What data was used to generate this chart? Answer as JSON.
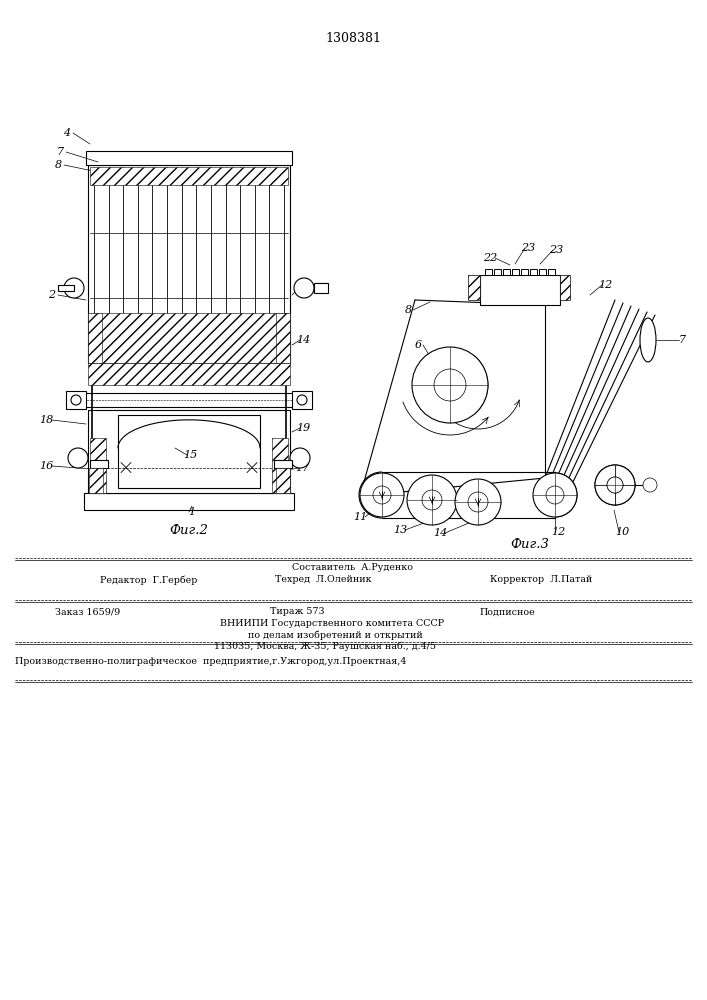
{
  "patent_number": "1308381",
  "bg_color": "#ffffff",
  "line_color": "#000000",
  "fig_width": 7.07,
  "fig_height": 10.0,
  "fig2_caption": "Фиг.2",
  "fig3_caption": "Фиг.3",
  "footer_line1_center": "Составитель  А.Руденко",
  "footer_line2_left": "Редактор  Г.Гербер",
  "footer_line2_center": "Техред  Л.Олейник",
  "footer_line2_right": "Корректор  Л.Патай",
  "footer_line3_col1": "Заказ 1659/9",
  "footer_line3_col2": "Тираж 573",
  "footer_line3_col3": "Подписное",
  "footer_line4": "ВНИИПИ Государственного комитета СССР",
  "footer_line5": "по делам изобретений и открытий",
  "footer_line6": "113035, Москва, Ж-35, Раушская наб., д.4/5",
  "footer_line7": "Производственно-полиграфическое  предприятие,г.Ужгород,ул.Проектная,4"
}
